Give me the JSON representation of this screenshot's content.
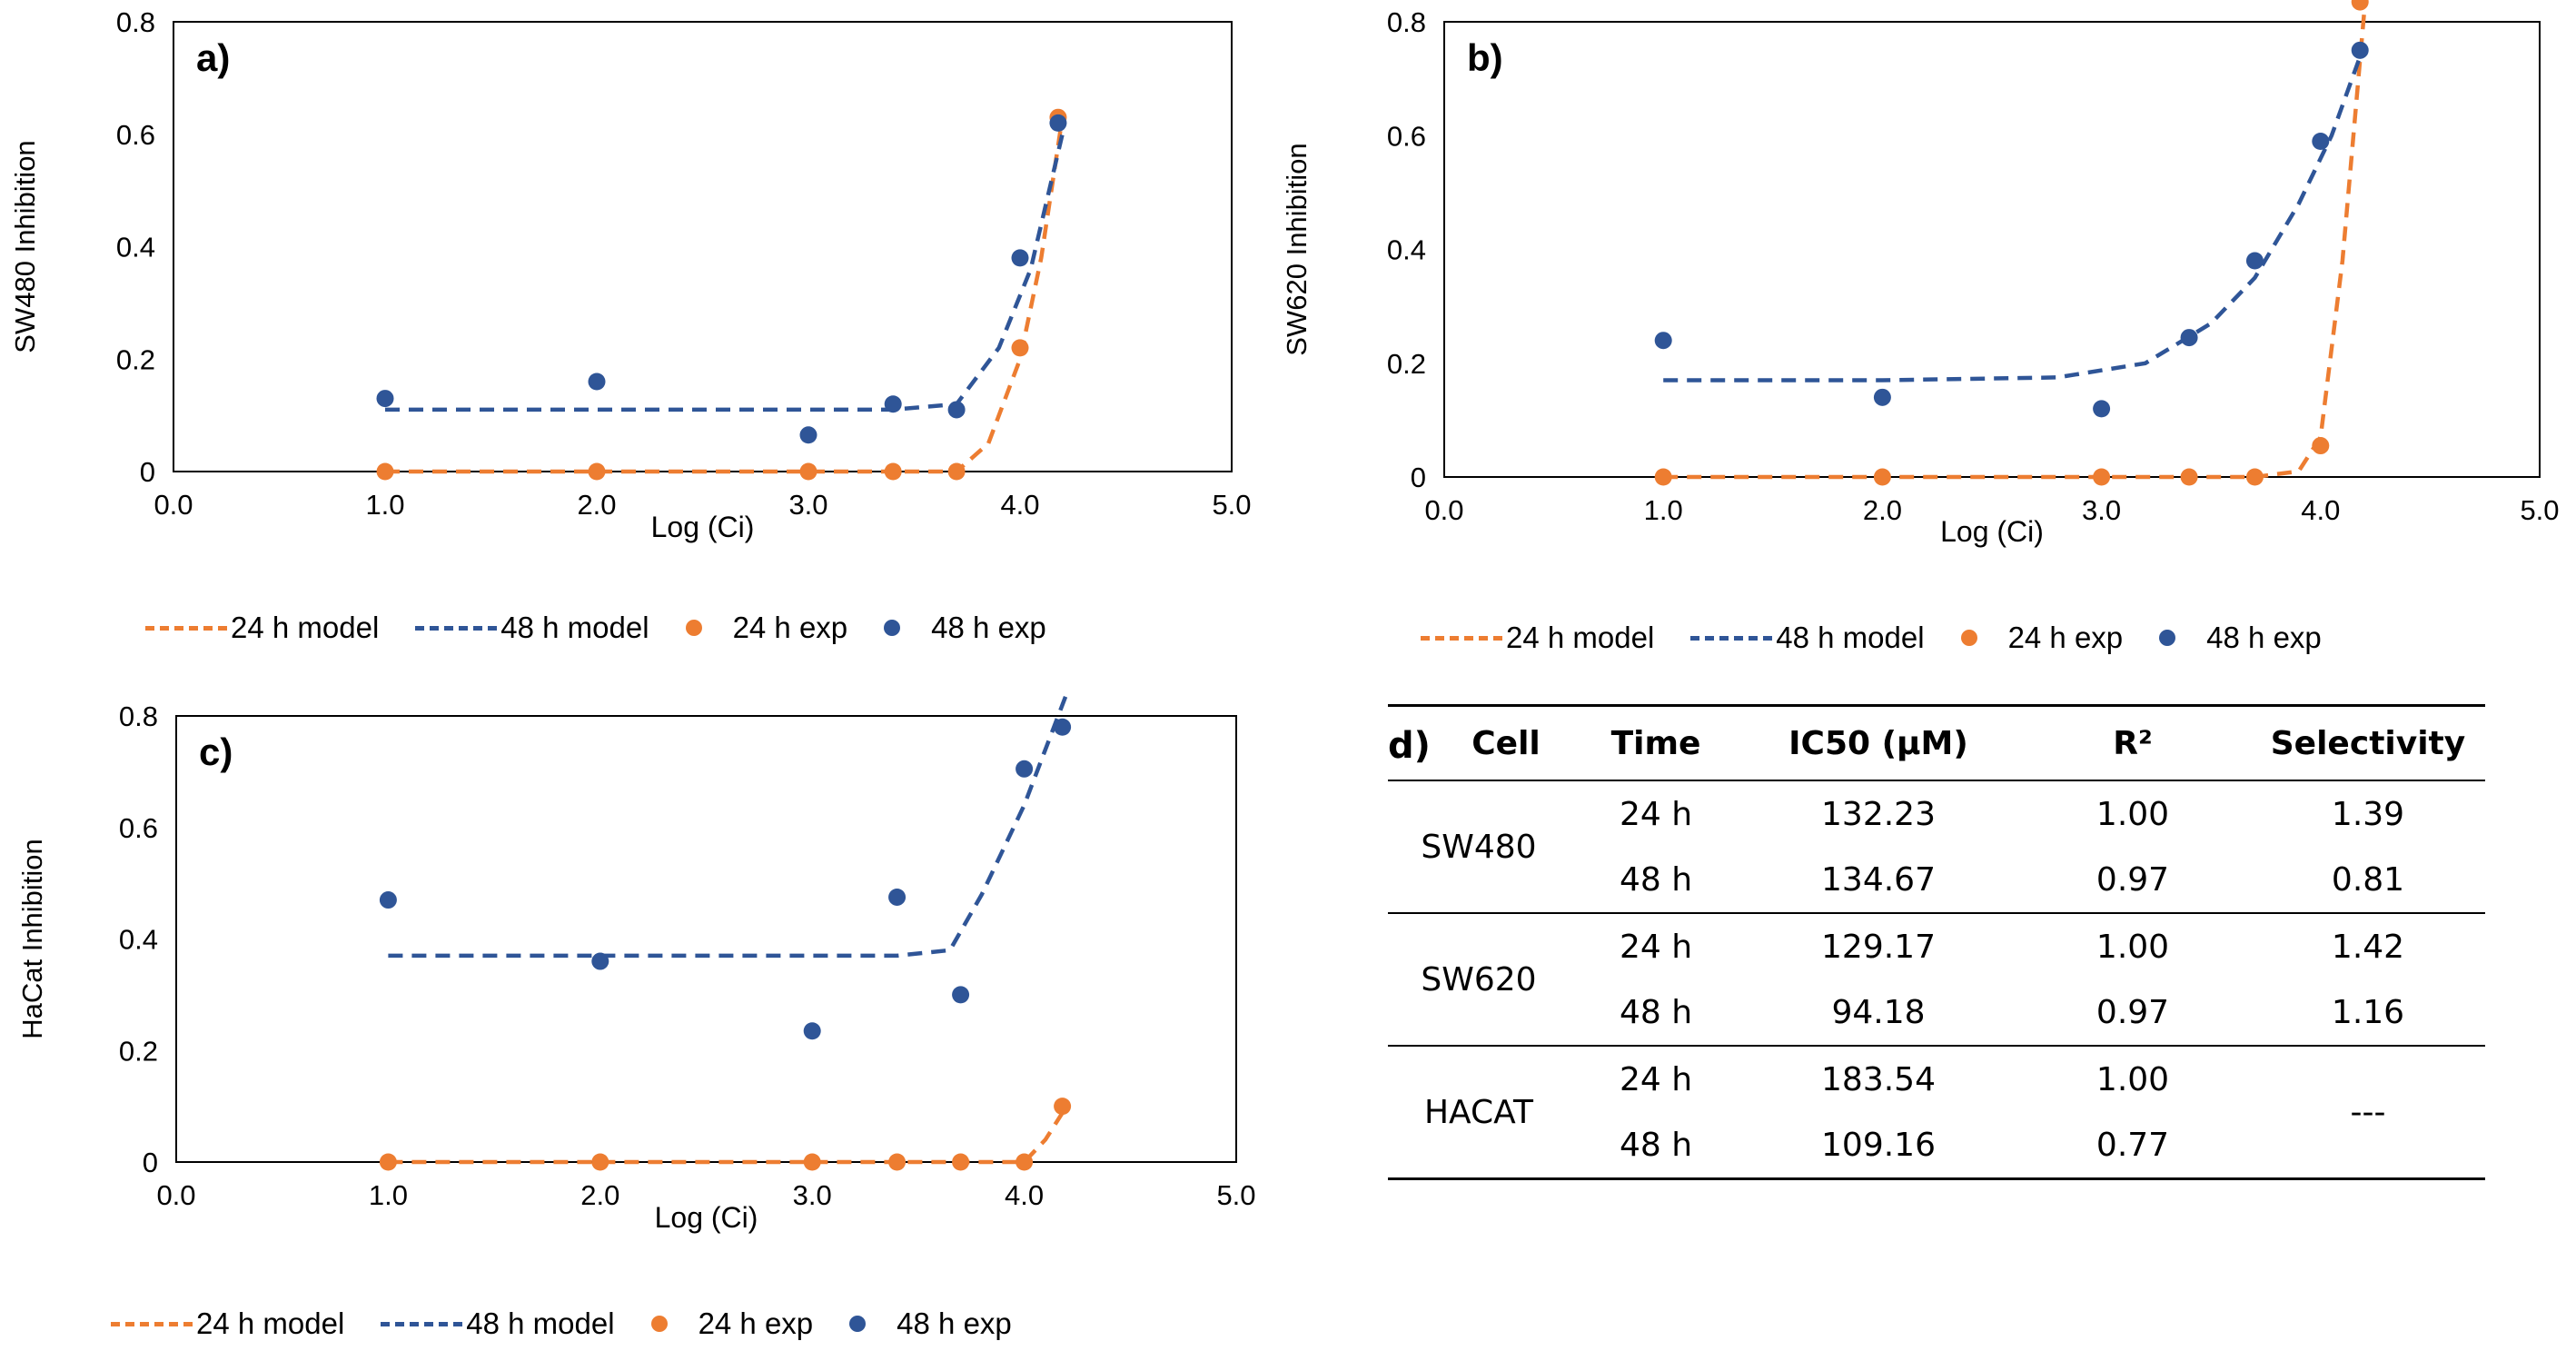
{
  "colors": {
    "orange": "#ED7D31",
    "blue": "#2F5597"
  },
  "legend": {
    "m24": "24 h model",
    "m48": "48 h model",
    "e24": "24 h exp",
    "e48": "48 h exp"
  },
  "chart_data": [
    {
      "id": "a",
      "type": "scatter",
      "panel_label": "a)",
      "xlabel": "Log (Ci)",
      "ylabel": "SW480 Inhibition",
      "xlim": [
        0,
        5
      ],
      "ylim": [
        0,
        0.8
      ],
      "xticks": [
        "0.0",
        "1.0",
        "2.0",
        "3.0",
        "4.0",
        "5.0"
      ],
      "yticks": [
        "0",
        "0.2",
        "0.4",
        "0.6",
        "0.8"
      ],
      "series": [
        {
          "name": "24 h model",
          "kind": "line",
          "color": "#ED7D31",
          "x": [
            1.0,
            2.0,
            3.0,
            3.7,
            3.85,
            4.0,
            4.1,
            4.2
          ],
          "y": [
            0,
            0,
            0,
            0,
            0.05,
            0.2,
            0.38,
            0.63
          ]
        },
        {
          "name": "48 h model",
          "kind": "line",
          "color": "#2F5597",
          "x": [
            1.0,
            2.0,
            3.0,
            3.4,
            3.7,
            3.9,
            4.05,
            4.2
          ],
          "y": [
            0.11,
            0.11,
            0.11,
            0.11,
            0.12,
            0.22,
            0.36,
            0.6
          ]
        },
        {
          "name": "24 h exp",
          "kind": "points",
          "color": "#ED7D31",
          "x": [
            1.0,
            2.0,
            3.0,
            3.4,
            3.7,
            4.0,
            4.18
          ],
          "y": [
            0,
            0,
            0,
            0,
            0,
            0.22,
            0.63
          ]
        },
        {
          "name": "48 h exp",
          "kind": "points",
          "color": "#2F5597",
          "x": [
            1.0,
            2.0,
            3.0,
            3.4,
            3.7,
            4.0,
            4.18
          ],
          "y": [
            0.13,
            0.16,
            0.065,
            0.12,
            0.11,
            0.38,
            0.62
          ]
        }
      ]
    },
    {
      "id": "b",
      "type": "scatter",
      "panel_label": "b)",
      "xlabel": "Log (Ci)",
      "ylabel": "SW620 Inhibition",
      "xlim": [
        0,
        5
      ],
      "ylim": [
        0,
        0.8
      ],
      "xticks": [
        "0.0",
        "1.0",
        "2.0",
        "3.0",
        "4.0",
        "5.0"
      ],
      "yticks": [
        "0",
        "0.2",
        "0.4",
        "0.6",
        "0.8"
      ],
      "series": [
        {
          "name": "24 h model",
          "kind": "line",
          "color": "#ED7D31",
          "x": [
            1.0,
            2.0,
            3.0,
            3.7,
            3.9,
            4.0,
            4.1,
            4.2
          ],
          "y": [
            0,
            0,
            0,
            0,
            0.01,
            0.07,
            0.38,
            0.82
          ]
        },
        {
          "name": "48 h model",
          "kind": "line",
          "color": "#2F5597",
          "x": [
            1.0,
            2.0,
            2.8,
            3.2,
            3.5,
            3.7,
            3.9,
            4.05,
            4.2
          ],
          "y": [
            0.17,
            0.17,
            0.175,
            0.2,
            0.27,
            0.35,
            0.48,
            0.6,
            0.76
          ]
        },
        {
          "name": "24 h exp",
          "kind": "points",
          "color": "#ED7D31",
          "x": [
            1.0,
            2.0,
            3.0,
            3.4,
            3.7,
            4.0,
            4.18
          ],
          "y": [
            0,
            0,
            0,
            0,
            0,
            0.055,
            0.835
          ]
        },
        {
          "name": "48 h exp",
          "kind": "points",
          "color": "#2F5597",
          "x": [
            1.0,
            2.0,
            3.0,
            3.4,
            3.7,
            4.0,
            4.18
          ],
          "y": [
            0.24,
            0.14,
            0.12,
            0.245,
            0.38,
            0.59,
            0.75
          ]
        }
      ]
    },
    {
      "id": "c",
      "type": "scatter",
      "panel_label": "c)",
      "xlabel": "Log (Ci)",
      "ylabel": "HaCat Inhibition",
      "xlim": [
        0,
        5
      ],
      "ylim": [
        0,
        0.8
      ],
      "xticks": [
        "0.0",
        "1.0",
        "2.0",
        "3.0",
        "4.0",
        "5.0"
      ],
      "yticks": [
        "0",
        "0.2",
        "0.4",
        "0.6",
        "0.8"
      ],
      "series": [
        {
          "name": "24 h model",
          "kind": "line",
          "color": "#ED7D31",
          "x": [
            1.0,
            2.0,
            3.0,
            3.7,
            4.0,
            4.1,
            4.2
          ],
          "y": [
            0,
            0,
            0,
            0,
            0,
            0.04,
            0.1
          ]
        },
        {
          "name": "48 h model",
          "kind": "line",
          "color": "#2F5597",
          "x": [
            1.0,
            2.0,
            3.0,
            3.4,
            3.65,
            3.8,
            4.0,
            4.2
          ],
          "y": [
            0.37,
            0.37,
            0.37,
            0.37,
            0.38,
            0.48,
            0.64,
            0.84
          ]
        },
        {
          "name": "24 h exp",
          "kind": "points",
          "color": "#ED7D31",
          "x": [
            1.0,
            2.0,
            3.0,
            3.4,
            3.7,
            4.0,
            4.18
          ],
          "y": [
            0,
            0,
            0,
            0,
            0,
            0,
            0.1
          ]
        },
        {
          "name": "48 h exp",
          "kind": "points",
          "color": "#2F5597",
          "x": [
            1.0,
            2.0,
            3.0,
            3.4,
            3.7,
            4.0,
            4.18
          ],
          "y": [
            0.47,
            0.36,
            0.235,
            0.475,
            0.3,
            0.705,
            0.78
          ]
        }
      ]
    },
    {
      "id": "d",
      "type": "table",
      "panel_label": "d)",
      "headers": [
        "Cell",
        "Time",
        "IC50 (µM)",
        "R²",
        "Selectivity"
      ],
      "groups": [
        {
          "cell": "SW480",
          "rows": [
            {
              "time": "24 h",
              "ic50": "132.23",
              "r2": "1.00",
              "sel": "1.39"
            },
            {
              "time": "48 h",
              "ic50": "134.67",
              "r2": "0.97",
              "sel": "0.81"
            }
          ]
        },
        {
          "cell": "SW620",
          "rows": [
            {
              "time": "24 h",
              "ic50": "129.17",
              "r2": "1.00",
              "sel": "1.42"
            },
            {
              "time": "48 h",
              "ic50": "94.18",
              "r2": "0.97",
              "sel": "1.16"
            }
          ]
        },
        {
          "cell": "HACAT",
          "merged_sel": "---",
          "rows": [
            {
              "time": "24 h",
              "ic50": "183.54",
              "r2": "1.00"
            },
            {
              "time": "48 h",
              "ic50": "109.16",
              "r2": "0.77"
            }
          ]
        }
      ]
    }
  ]
}
